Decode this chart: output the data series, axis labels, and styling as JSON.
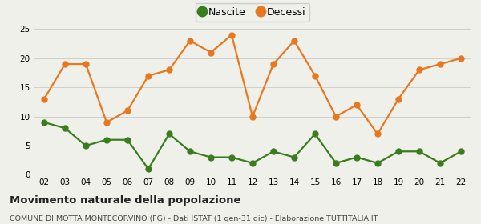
{
  "years": [
    "02",
    "03",
    "04",
    "05",
    "06",
    "07",
    "08",
    "09",
    "10",
    "11",
    "12",
    "13",
    "14",
    "15",
    "16",
    "17",
    "18",
    "19",
    "20",
    "21",
    "22"
  ],
  "nascite": [
    9,
    8,
    5,
    6,
    6,
    1,
    7,
    4,
    3,
    3,
    2,
    4,
    3,
    7,
    2,
    3,
    2,
    4,
    4,
    2,
    4
  ],
  "decessi": [
    13,
    19,
    19,
    9,
    11,
    17,
    18,
    23,
    21,
    24,
    10,
    19,
    23,
    17,
    10,
    12,
    7,
    13,
    18,
    19,
    20
  ],
  "nascite_color": "#3a7d1e",
  "decessi_color": "#e87820",
  "background_color": "#f0f0eb",
  "grid_color": "#d0d0d0",
  "ylim": [
    0,
    25
  ],
  "yticks": [
    0,
    5,
    10,
    15,
    20,
    25
  ],
  "title1": "Movimento naturale della popolazione",
  "title2": "COMUNE DI MOTTA MONTECORVINO (FG) - Dati ISTAT (1 gen-31 dic) - Elaborazione TUTTITALIA.IT",
  "legend_nascite": "Nascite",
  "legend_decessi": "Decessi",
  "marker_size": 5,
  "line_width": 1.6
}
